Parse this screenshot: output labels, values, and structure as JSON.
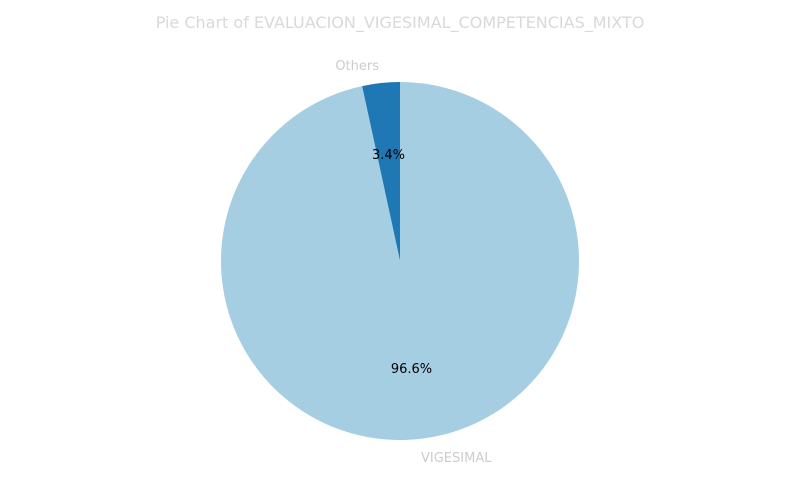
{
  "chart_data": {
    "type": "pie",
    "title": "Pie Chart of EVALUACION_VIGESIMAL_COMPETENCIAS_MIXTO",
    "start_angle": "top",
    "direction": "counterclockwise",
    "slices": [
      {
        "label": "Others",
        "value": 3.4,
        "pct_label": "3.4%",
        "color": "#1f78b4"
      },
      {
        "label": "VIGESIMAL",
        "value": 96.6,
        "pct_label": "96.6%",
        "color": "#a6cee3"
      }
    ]
  }
}
